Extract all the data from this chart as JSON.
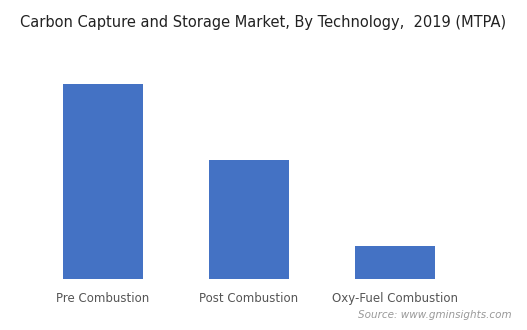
{
  "title": "Carbon Capture and Storage Market, By Technology,  2019 (MTPA)",
  "categories": [
    "Pre Combustion",
    "Post Combustion",
    "Oxy-Fuel Combustion"
  ],
  "values": [
    0.82,
    0.5,
    0.14
  ],
  "bar_color": "#4472C4",
  "background_color": "#ffffff",
  "source_text": "Source: www.gminsights.com",
  "title_fontsize": 10.5,
  "label_fontsize": 8.5,
  "source_fontsize": 7.5,
  "ylim": [
    0,
    1.0
  ],
  "bar_width": 0.55,
  "xlim": [
    -0.6,
    2.8
  ]
}
